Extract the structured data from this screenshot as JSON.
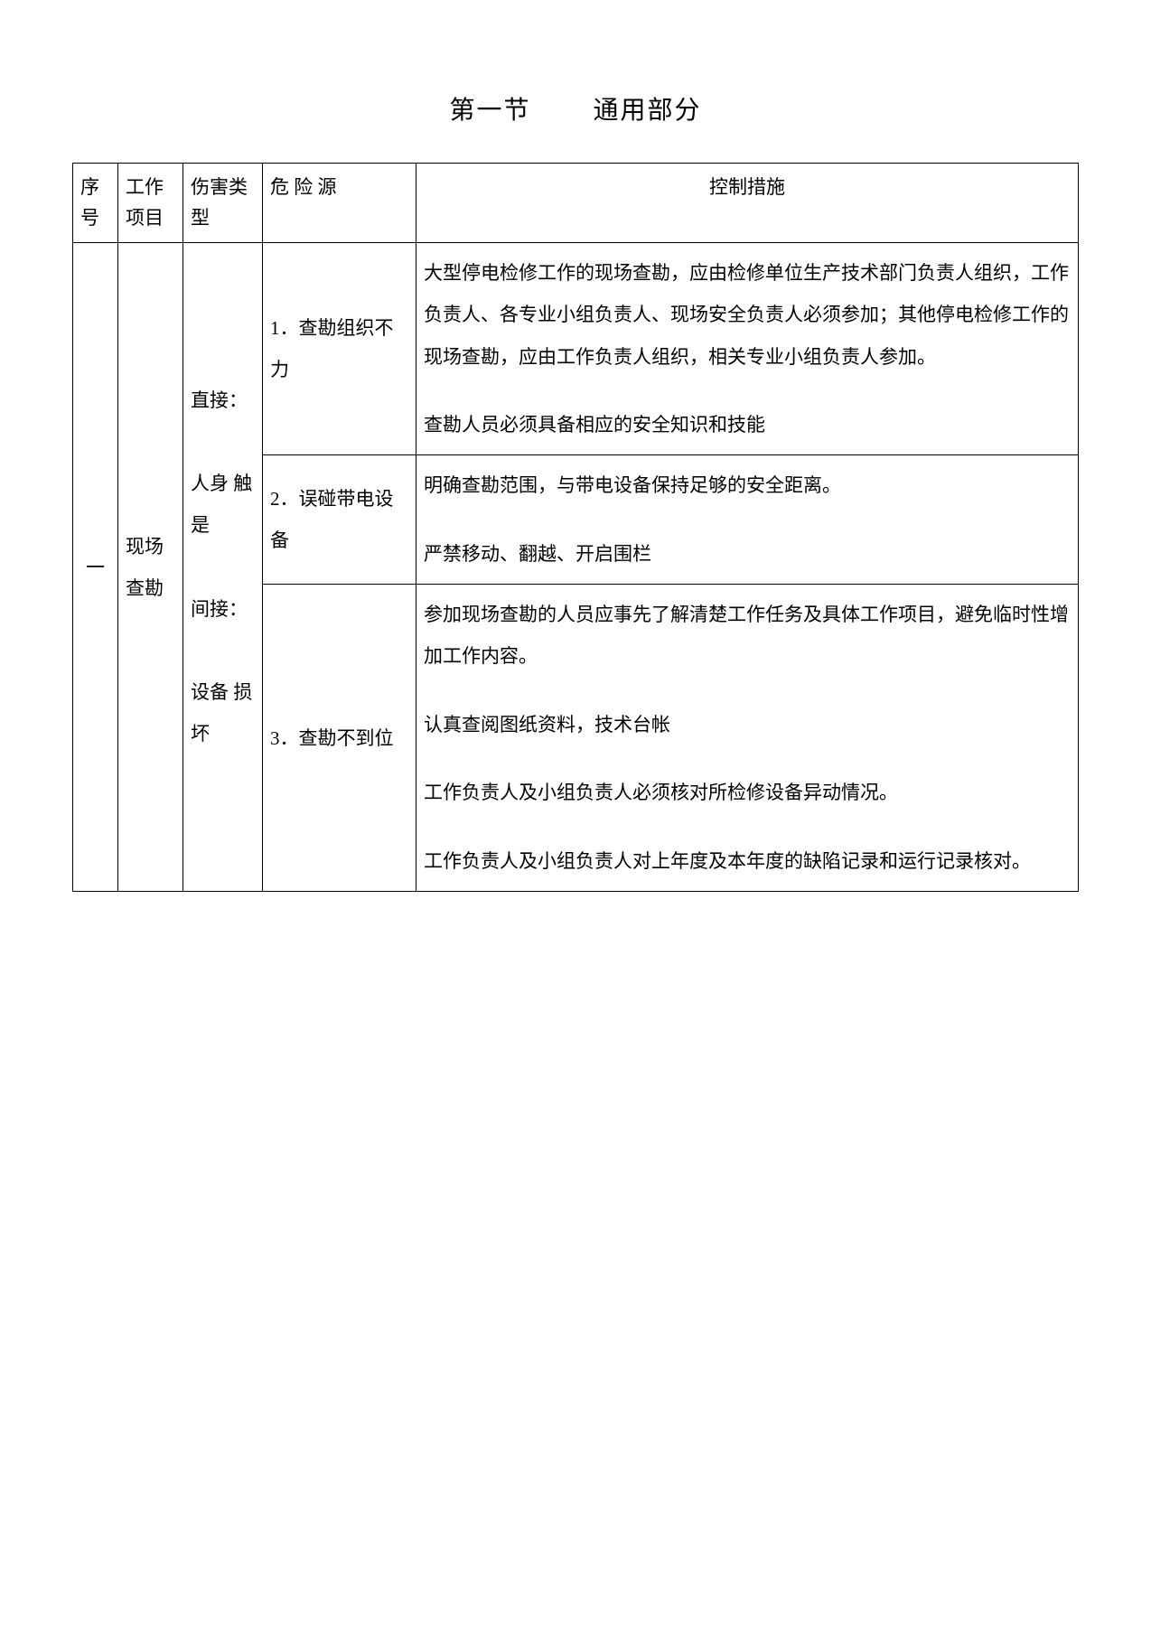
{
  "heading": {
    "section": "第一节",
    "part": "通用部分"
  },
  "columns": {
    "seq": "序号",
    "workItem": "工作项目",
    "harmType": "伤害类型",
    "hazard": "危 险 源",
    "measure": "控制措施"
  },
  "rows": [
    {
      "seq": "一",
      "workItem": "现场查勘",
      "harmType": "直接：\n\n人身 触是\n\n间接：\n\n设备 损坏",
      "hazards": [
        {
          "label": "1．查勘组织不力",
          "measures": [
            "大型停电检修工作的现场查勘，应由检修单位生产技术部门负责人组织，工作负责人、各专业小组负责人、现场安全负责人必须参加；其他停电检修工作的现场查勘，应由工作负责人组织，相关专业小组负责人参加。",
            "  查勘人员必须具备相应的安全知识和技能"
          ]
        },
        {
          "label": "2．误碰带电设备",
          "measures": [
            "  明确查勘范围，与带电设备保持足够的安全距离。",
            "严禁移动、翻越、开启围栏"
          ]
        },
        {
          "label": "3．查勘不到位",
          "measures": [
            "参加现场查勘的人员应事先了解清楚工作任务及具体工作项目，避免临时性增加工作内容。",
            "  认真查阅图纸资料，技术台帐",
            "工作负责人及小组负责人必须核对所检修设备异动情况。",
            "工作负责人及小组负责人对上年度及本年度的缺陷记录和运行记录核对。"
          ]
        }
      ]
    }
  ]
}
